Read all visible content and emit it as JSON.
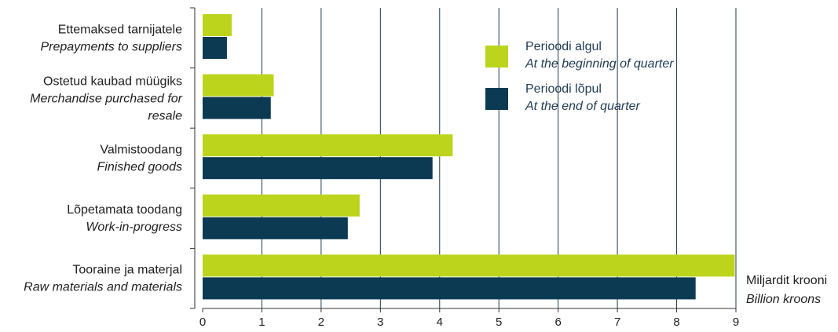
{
  "chart_data": {
    "type": "bar",
    "orientation": "horizontal",
    "categories": [
      {
        "et": "Ettemaksed tarnijatele",
        "en": [
          "Prepayments to suppliers"
        ]
      },
      {
        "et": "Ostetud kaubad müügiks",
        "en": [
          "Merchandise purchased for",
          "resale"
        ]
      },
      {
        "et": "Valmistoodang",
        "en": [
          "Finished goods"
        ]
      },
      {
        "et": "Lõpetamata toodang",
        "en": [
          "Work-in-progress"
        ]
      },
      {
        "et": "Tooraine ja materjal",
        "en": [
          "Raw materials and materials"
        ]
      }
    ],
    "series": [
      {
        "name": "Perioodi algul",
        "name_en": "At the beginning of quarter",
        "color": "#bcd41c",
        "values": [
          0.49,
          1.2,
          4.22,
          2.65,
          8.98
        ]
      },
      {
        "name": "Perioodi lõpul",
        "name_en": "At the end of quarter",
        "color": "#0b3a52",
        "values": [
          0.41,
          1.15,
          3.88,
          2.45,
          8.32
        ]
      }
    ],
    "xlim": [
      0,
      9
    ],
    "xticks": [
      "0",
      "1",
      "2",
      "3",
      "4",
      "5",
      "6",
      "7",
      "8",
      "9"
    ],
    "xlabel": "Miljardit krooni",
    "xlabel_en": "Billion kroons",
    "grid": "vertical",
    "legend_position": "top-right"
  }
}
